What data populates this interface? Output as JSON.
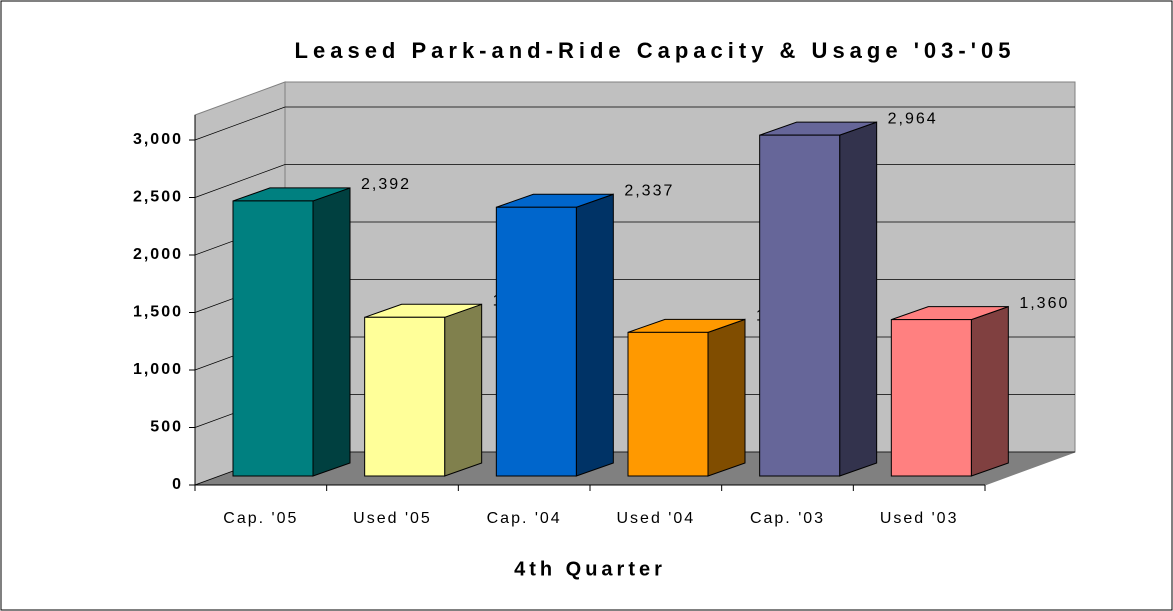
{
  "chart_data": {
    "type": "bar3d",
    "title": "Leased Park-and-Ride Capacity & Usage '03-'05",
    "x_label": "4th Quarter",
    "categories": [
      "Cap. '05",
      "Used '05",
      "Cap. '04",
      "Used '04",
      "Cap. '03",
      "Used '03"
    ],
    "values": [
      2392,
      1380,
      2337,
      1249,
      2964,
      1360
    ],
    "value_labels": [
      "2,392",
      "1,380",
      "2,337",
      "1,249",
      "2,964",
      "1,360"
    ],
    "colors": [
      "#008080",
      "#ffff99",
      "#0066cc",
      "#ff9900",
      "#666699",
      "#ff8080"
    ],
    "ylim": [
      0,
      3000
    ],
    "yticks": [
      0,
      500,
      {
        "value": 1000,
        "label": "1,000"
      },
      {
        "value": 1500,
        "label": "1,500"
      },
      {
        "value": 2000,
        "label": "2,000"
      },
      {
        "value": 2500,
        "label": "2,500"
      },
      {
        "value": 3000,
        "label": "3,000"
      }
    ],
    "grid": true
  }
}
